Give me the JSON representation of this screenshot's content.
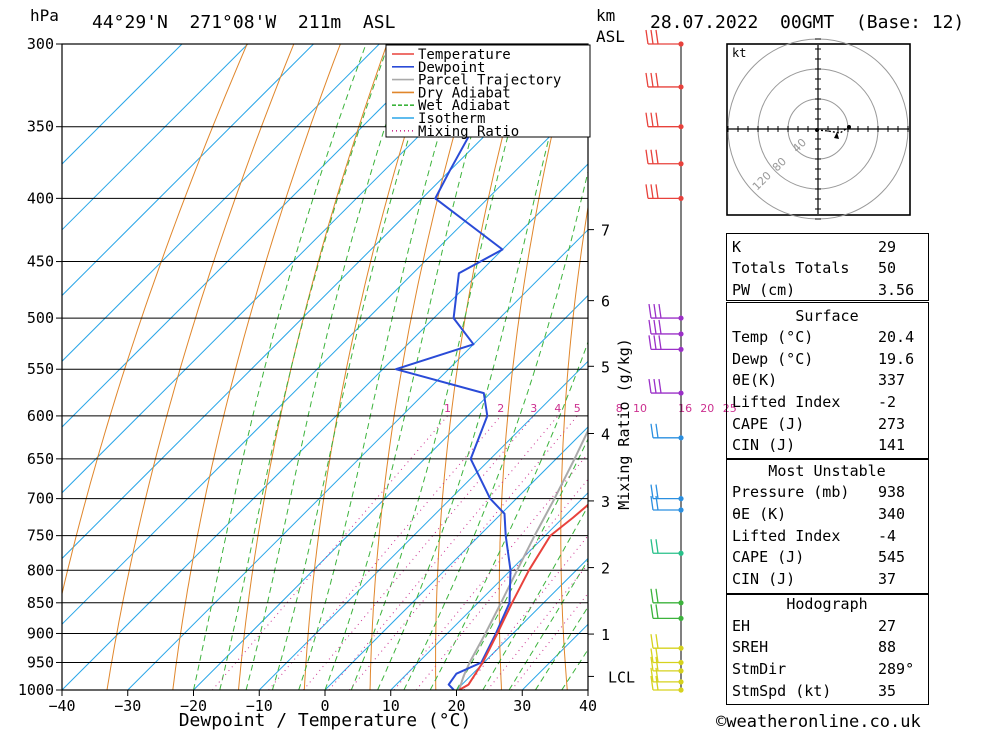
{
  "header": {
    "location": "44°29'N  271°08'W  211m  ASL",
    "pressure_unit": "hPa",
    "height_unit_km": "km",
    "height_unit_asl": "ASL",
    "datetime": "28.07.2022  00GMT  (Base: 12)"
  },
  "footer": {
    "copyright": "©weatheronline.co.uk"
  },
  "chart_data": {
    "type": "line",
    "xlabel": "Dewpoint / Temperature (°C)",
    "ylabel": "",
    "x_ticks": [
      -40,
      -30,
      -20,
      -10,
      0,
      10,
      20,
      30,
      40
    ],
    "pressure_levels": [
      300,
      350,
      400,
      450,
      500,
      550,
      600,
      650,
      700,
      750,
      800,
      850,
      900,
      950,
      1000
    ],
    "height_km_ticks": [
      1,
      2,
      3,
      4,
      5,
      6,
      7
    ],
    "height_km_pressure": [
      901,
      796,
      703,
      620,
      547,
      484,
      424
    ],
    "lcl_label": "LCL",
    "lcl_pressure": 975,
    "mixing_ratio_label": "Mixing Ratio (g/kg)",
    "mixing_ratio_values": [
      "1",
      "2",
      "3",
      "4",
      "5",
      "8",
      "10",
      "16",
      "20",
      "25"
    ],
    "legend": [
      "Temperature",
      "Dewpoint",
      "Parcel Trajectory",
      "Dry Adiabat",
      "Wet Adiabat",
      "Isotherm",
      "Mixing Ratio"
    ],
    "colors": {
      "temperature": "#e8423c",
      "dewpoint": "#2a4bd7",
      "parcel": "#aaaaaa",
      "dry_adiabat": "#e0862b",
      "wet_adiabat": "#3cb33c",
      "isotherm": "#2aa6e8",
      "mixing_ratio": "#cc2f8f"
    },
    "series": [
      {
        "name": "Temperature",
        "points": [
          [
            1000,
            20.4
          ],
          [
            990,
            21.0
          ],
          [
            950,
            19.8
          ],
          [
            900,
            17.6
          ],
          [
            850,
            15.2
          ],
          [
            800,
            12.8
          ],
          [
            750,
            10.8
          ],
          [
            725,
            11.5
          ],
          [
            700,
            12.0
          ],
          [
            650,
            7.5
          ],
          [
            600,
            1.5
          ],
          [
            575,
            -3.0
          ],
          [
            550,
            -4.0
          ],
          [
            500,
            -10.0
          ],
          [
            450,
            -17.0
          ],
          [
            420,
            -20.0
          ],
          [
            400,
            -19.5
          ],
          [
            350,
            -28.0
          ],
          [
            300,
            -37.5
          ]
        ]
      },
      {
        "name": "Dewpoint",
        "points": [
          [
            1000,
            19.6
          ],
          [
            990,
            18.0
          ],
          [
            970,
            17.5
          ],
          [
            950,
            19.6
          ],
          [
            900,
            17.4
          ],
          [
            850,
            14.8
          ],
          [
            800,
            10.0
          ],
          [
            750,
            4.0
          ],
          [
            720,
            0.5
          ],
          [
            700,
            -4.0
          ],
          [
            650,
            -13.0
          ],
          [
            600,
            -17.0
          ],
          [
            575,
            -21.0
          ],
          [
            550,
            -38.0
          ],
          [
            525,
            -30.0
          ],
          [
            500,
            -37.0
          ],
          [
            460,
            -43.0
          ],
          [
            440,
            -40.0
          ],
          [
            400,
            -58.0
          ],
          [
            380,
            -60.0
          ],
          [
            350,
            -63.0
          ],
          [
            300,
            -70.0
          ]
        ]
      },
      {
        "name": "Parcel Trajectory",
        "points": [
          [
            1000,
            20.4
          ],
          [
            975,
            19.0
          ],
          [
            950,
            17.8
          ],
          [
            900,
            15.8
          ],
          [
            850,
            13.5
          ],
          [
            800,
            11.0
          ],
          [
            750,
            8.4
          ],
          [
            700,
            5.8
          ],
          [
            650,
            2.8
          ],
          [
            600,
            -0.6
          ],
          [
            550,
            -4.6
          ],
          [
            500,
            -9.0
          ],
          [
            450,
            -14.4
          ],
          [
            400,
            -21.0
          ],
          [
            350,
            -29.0
          ],
          [
            300,
            -38.0
          ]
        ]
      }
    ],
    "wind_barbs_pressure": [
      300,
      325,
      350,
      375,
      400,
      500,
      515,
      530,
      575,
      625,
      700,
      715,
      775,
      850,
      875,
      925,
      950,
      965,
      985,
      1000
    ]
  },
  "hodograph": {
    "unit": "kt",
    "ring_labels": [
      "40",
      "80",
      "120"
    ]
  },
  "indices": {
    "basic": [
      {
        "label": "K",
        "value": "29"
      },
      {
        "label": "Totals Totals",
        "value": "50"
      },
      {
        "label": "PW (cm)",
        "value": "3.56"
      }
    ],
    "surface_title": "Surface",
    "surface": [
      {
        "label": "Temp (°C)",
        "value": "20.4"
      },
      {
        "label": "Dewp (°C)",
        "value": "19.6"
      },
      {
        "label": "θE(K)",
        "value": "337"
      },
      {
        "label": "Lifted Index",
        "value": "-2"
      },
      {
        "label": "CAPE (J)",
        "value": "273"
      },
      {
        "label": "CIN (J)",
        "value": "141"
      }
    ],
    "mu_title": "Most Unstable",
    "mu": [
      {
        "label": "Pressure (mb)",
        "value": "938"
      },
      {
        "label": "θE (K)",
        "value": "340"
      },
      {
        "label": "Lifted Index",
        "value": "-4"
      },
      {
        "label": "CAPE (J)",
        "value": "545"
      },
      {
        "label": "CIN (J)",
        "value": "37"
      }
    ],
    "hodo_title": "Hodograph",
    "hodo": [
      {
        "label": "EH",
        "value": "27"
      },
      {
        "label": "SREH",
        "value": "88"
      },
      {
        "label": "StmDir",
        "value": "289°"
      },
      {
        "label": "StmSpd (kt)",
        "value": "35"
      }
    ]
  }
}
